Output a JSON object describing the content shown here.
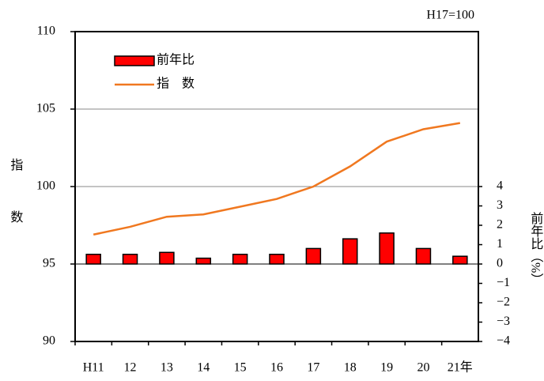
{
  "chart_data": {
    "type": "bar-line",
    "annotation": "H17=100",
    "ylabel": "指数",
    "y2label": "前年比（%）",
    "categories": [
      "H11",
      "12",
      "13",
      "14",
      "15",
      "16",
      "17",
      "18",
      "19",
      "20",
      "21年"
    ],
    "series": [
      {
        "name": "前年比",
        "type": "bar",
        "axis": "y2",
        "color": "#ff0000",
        "values": [
          0.5,
          0.5,
          0.6,
          0.3,
          0.5,
          0.5,
          0.8,
          1.3,
          1.6,
          0.8,
          0.4
        ]
      },
      {
        "name": "指　数",
        "type": "line",
        "axis": "y",
        "color": "#f07820",
        "values": [
          96.9,
          97.4,
          98.05,
          98.2,
          98.7,
          99.2,
          100.0,
          101.3,
          102.9,
          103.7,
          104.1
        ]
      }
    ],
    "ylim": [
      90,
      110
    ],
    "yticks": [
      90,
      95,
      100,
      105,
      110
    ],
    "y2lim": [
      -4,
      12
    ],
    "y2ticks": [
      {
        "value": -4,
        "label": "−4"
      },
      {
        "value": -3,
        "label": "−3"
      },
      {
        "value": -2,
        "label": "−2"
      },
      {
        "value": -1,
        "label": "−1"
      },
      0,
      1,
      2,
      3,
      4
    ],
    "grid": true,
    "legend": "upper left"
  }
}
